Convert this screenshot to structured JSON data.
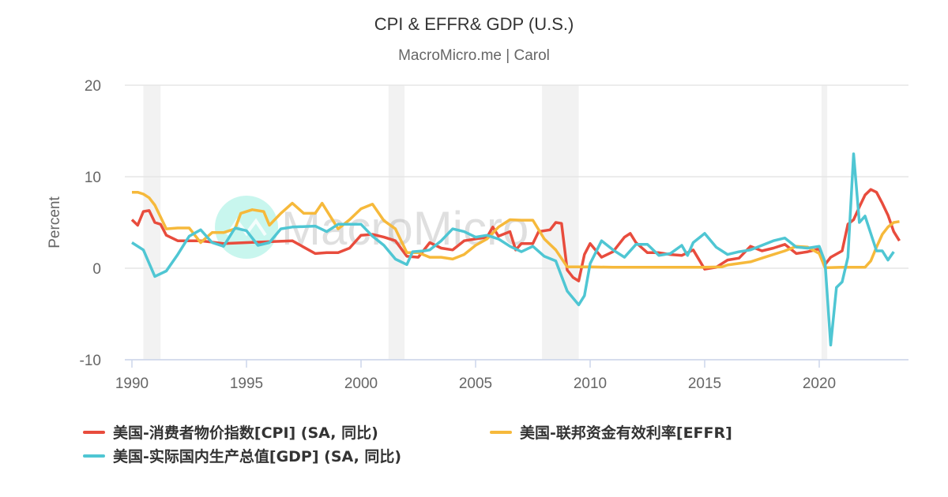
{
  "chart_data": {
    "type": "line",
    "title": "CPI & EFFR& GDP (U.S.)",
    "subtitle": "MacroMicro.me | Carol",
    "watermark": "MacroMicro",
    "ylabel": "Percent",
    "xlabel": "",
    "ylim": [
      -10,
      20
    ],
    "xlim": [
      1989.8,
      2023.9
    ],
    "yticks": [
      "20",
      "10",
      "0",
      "-10"
    ],
    "ytick_values": [
      20,
      10,
      0,
      -10
    ],
    "xticks": [
      "1990",
      "1995",
      "2000",
      "2005",
      "2010",
      "2015",
      "2020"
    ],
    "xtick_values": [
      1990,
      1995,
      2000,
      2005,
      2010,
      2015,
      2020
    ],
    "grid": "horizontal",
    "legend": "bottom",
    "recessions": [
      [
        1990.5,
        1991.25
      ],
      [
        2001.2,
        2001.9
      ],
      [
        2007.9,
        2009.5
      ],
      [
        2020.1,
        2020.35
      ]
    ],
    "series": [
      {
        "name": "美国-消费者物价指数[CPI] (SA, 同比)",
        "color": "#e84c3d",
        "x": [
          1990,
          1990.25,
          1990.5,
          1990.75,
          1991,
          1991.25,
          1991.5,
          1992,
          1993,
          1994,
          1995,
          1996,
          1997,
          1997.5,
          1998,
          1998.5,
          1999,
          1999.5,
          2000,
          2000.5,
          2001,
          2001.5,
          2002,
          2002.5,
          2003,
          2003.5,
          2004,
          2004.5,
          2005,
          2005.5,
          2005.75,
          2006,
          2006.5,
          2006.75,
          2007,
          2007.5,
          2007.75,
          2008.25,
          2008.5,
          2008.75,
          2009,
          2009.25,
          2009.5,
          2009.75,
          2010,
          2010.5,
          2011,
          2011.5,
          2011.75,
          2012,
          2012.5,
          2013,
          2013.5,
          2014,
          2014.5,
          2015,
          2015.5,
          2016,
          2016.5,
          2017,
          2017.5,
          2018,
          2018.5,
          2019,
          2019.5,
          2020,
          2020.25,
          2020.5,
          2021,
          2021.25,
          2021.5,
          2021.75,
          2022,
          2022.25,
          2022.5,
          2022.75,
          2023,
          2023.25,
          2023.5
        ],
        "values": [
          5.3,
          4.7,
          6.2,
          6.3,
          5.0,
          4.8,
          3.6,
          3.0,
          3.0,
          2.7,
          2.8,
          2.9,
          3.0,
          2.3,
          1.6,
          1.7,
          1.7,
          2.2,
          3.6,
          3.7,
          3.4,
          3.0,
          1.3,
          1.2,
          2.8,
          2.2,
          2.0,
          3.0,
          3.2,
          3.4,
          4.5,
          3.5,
          4.0,
          2.0,
          2.7,
          2.7,
          4.0,
          4.2,
          5.0,
          4.9,
          -0.2,
          -1.0,
          -1.4,
          1.5,
          2.7,
          1.2,
          1.8,
          3.4,
          3.8,
          2.8,
          1.7,
          1.7,
          1.5,
          1.4,
          2.0,
          -0.1,
          0.1,
          0.9,
          1.1,
          2.4,
          1.9,
          2.2,
          2.6,
          1.6,
          1.8,
          2.1,
          0.4,
          1.2,
          1.9,
          4.8,
          5.3,
          6.7,
          8.0,
          8.6,
          8.3,
          7.1,
          5.8,
          4.0,
          3.0
        ]
      },
      {
        "name": "美国-联邦资金有效利率[EFFR]",
        "color": "#f6b93b",
        "x": [
          1990,
          1990.25,
          1990.5,
          1990.75,
          1991,
          1991.5,
          1992,
          1992.5,
          1993,
          1993.5,
          1994,
          1994.5,
          1994.75,
          1995.25,
          1995.75,
          1996,
          1996.5,
          1997,
          1997.5,
          1998,
          1998.3,
          1999,
          1999.5,
          2000,
          2000.5,
          2001,
          2001.5,
          2002,
          2002.5,
          2003,
          2003.5,
          2004,
          2004.5,
          2005,
          2005.5,
          2006,
          2006.5,
          2007,
          2007.5,
          2008,
          2008.5,
          2009,
          2010,
          2011,
          2012,
          2013,
          2014,
          2015,
          2015.75,
          2016,
          2017,
          2017.5,
          2018,
          2018.5,
          2019,
          2019.5,
          2020,
          2020.25,
          2021,
          2022,
          2022.25,
          2022.5,
          2022.75,
          2023,
          2023.25,
          2023.5
        ],
        "values": [
          8.3,
          8.3,
          8.1,
          7.7,
          6.9,
          4.3,
          4.4,
          4.4,
          2.8,
          3.9,
          3.9,
          4.3,
          6.0,
          6.4,
          6.2,
          4.7,
          6.0,
          7.1,
          6.0,
          6.0,
          7.1,
          4.3,
          5.3,
          6.5,
          7.0,
          5.2,
          4.3,
          1.7,
          1.7,
          1.2,
          1.2,
          1.0,
          1.5,
          2.5,
          3.2,
          4.5,
          5.3,
          5.25,
          5.25,
          3.2,
          2.0,
          0.15,
          0.15,
          0.1,
          0.1,
          0.1,
          0.1,
          0.1,
          0.15,
          0.35,
          0.7,
          1.1,
          1.5,
          1.9,
          2.4,
          2.3,
          1.6,
          0.05,
          0.1,
          0.1,
          0.8,
          2.3,
          3.7,
          4.5,
          5.0,
          5.1
        ]
      },
      {
        "name": "美国-实际国内生产总值[GDP] (SA, 同比)",
        "color": "#4fc6d3",
        "x": [
          1990,
          1990.5,
          1991,
          1991.5,
          1992,
          1992.5,
          1993,
          1993.5,
          1994,
          1994.5,
          1995,
          1995.5,
          1996,
          1996.5,
          1997,
          1998,
          1998.5,
          1999,
          2000,
          2000.5,
          2001,
          2001.5,
          2002,
          2002.25,
          2002.75,
          2003,
          2003.5,
          2004,
          2004.5,
          2005,
          2005.5,
          2006,
          2006.5,
          2007,
          2007.5,
          2008,
          2008.5,
          2009,
          2009.5,
          2009.75,
          2010,
          2010.5,
          2011,
          2011.5,
          2012,
          2012.5,
          2013,
          2013.5,
          2014,
          2014.25,
          2014.5,
          2015,
          2015.5,
          2016,
          2016.5,
          2017,
          2017.5,
          2018,
          2018.5,
          2019,
          2019.5,
          2020,
          2020.25,
          2020.5,
          2020.75,
          2021,
          2021.25,
          2021.5,
          2021.75,
          2022,
          2022.5,
          2022.75,
          2023,
          2023.25
        ],
        "values": [
          2.8,
          2.0,
          -0.9,
          -0.3,
          1.5,
          3.5,
          4.2,
          2.8,
          2.4,
          4.4,
          4.1,
          2.5,
          2.8,
          4.3,
          4.5,
          4.6,
          4.0,
          4.8,
          4.8,
          3.5,
          2.5,
          1.0,
          0.4,
          1.8,
          1.9,
          2.0,
          3.0,
          4.3,
          4.0,
          3.4,
          3.6,
          3.2,
          2.4,
          1.8,
          2.4,
          1.3,
          0.8,
          -2.5,
          -4.0,
          -3.0,
          0.5,
          3.0,
          2.0,
          1.2,
          2.6,
          2.6,
          1.4,
          1.6,
          2.5,
          1.4,
          2.8,
          3.8,
          2.3,
          1.5,
          1.8,
          2.0,
          2.5,
          3.0,
          3.3,
          2.3,
          2.2,
          2.4,
          0.7,
          -8.4,
          -2.1,
          -1.5,
          1.2,
          12.5,
          5.0,
          5.7,
          1.9,
          1.9,
          0.9,
          1.8
        ]
      }
    ]
  }
}
